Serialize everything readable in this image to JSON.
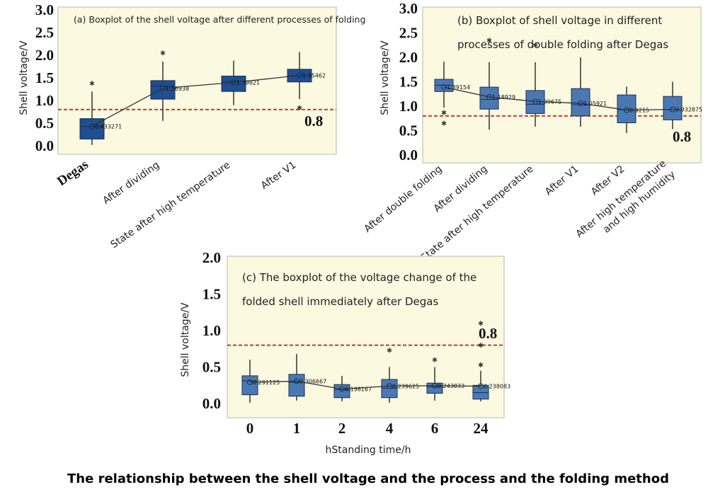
{
  "caption": "The relationship between the shell voltage and the process and the folding method",
  "colors": {
    "background": "#fbf9df",
    "box_dark": "#1f4e91",
    "box_light": "#4a78b2",
    "reference_line": "#c0393b"
  },
  "chart_data": [
    {
      "type": "boxplot",
      "title": "(a) Boxplot of the shell voltage after different processes of folding",
      "ylabel": "Shell voltage/V",
      "xlabel": "",
      "ylim": [
        0,
        3.0
      ],
      "yticks": [
        "0.0",
        "0.5",
        "1.0",
        "1.5",
        "2.0",
        "2.5",
        "3.0"
      ],
      "reference_line": {
        "value": 0.8,
        "label": "0.8"
      },
      "grid": false,
      "categories": [
        "Degas",
        "After dividing",
        "State after high temperature",
        "After V1"
      ],
      "boxes": [
        {
          "min": 0.02,
          "q1": 0.15,
          "median": 0.43,
          "q3": 0.6,
          "max": 1.2,
          "mean": 0.433271,
          "mean_label": "0.433271",
          "outliers": [
            1.38
          ]
        },
        {
          "min": 0.55,
          "q1": 1.03,
          "median": 1.32,
          "q3": 1.44,
          "max": 1.86,
          "mean": 1.26938,
          "mean_label": "1.26938",
          "outliers": [
            2.05
          ]
        },
        {
          "min": 0.9,
          "q1": 1.2,
          "median": 1.42,
          "q3": 1.54,
          "max": 1.88,
          "mean": 1.39821,
          "mean_label": "1.39821",
          "outliers": []
        },
        {
          "min": 1.03,
          "q1": 1.41,
          "median": 1.55,
          "q3": 1.69,
          "max": 2.07,
          "mean": 1.55462,
          "mean_label": "1.55462",
          "outliers": [
            0.84
          ]
        }
      ]
    },
    {
      "type": "boxplot",
      "title": [
        "(b) Boxplot of shell voltage in different",
        "processes of double folding after Degas"
      ],
      "ylabel": "Shell voltage/V",
      "xlabel": "",
      "ylim": [
        0,
        3.0
      ],
      "yticks": [
        "0.0",
        "0.5",
        "1.0",
        "1.5",
        "2.0",
        "2.5",
        "3.0"
      ],
      "reference_line": {
        "value": 0.8,
        "label": "0.8"
      },
      "grid": false,
      "categories": [
        "After double folding",
        "After dividing",
        "State after high temperature",
        "After V1",
        "After V2",
        [
          "After high temperature",
          "and high humidity"
        ]
      ],
      "boxes": [
        {
          "min": 0.97,
          "q1": 1.3,
          "median": 1.43,
          "q3": 1.55,
          "max": 1.91,
          "mean": 1.39154,
          "mean_label": "1.39154",
          "outliers": [
            0.87,
            0.65
          ]
        },
        {
          "min": 0.52,
          "q1": 0.94,
          "median": 1.14,
          "q3": 1.39,
          "max": 1.9,
          "mean": 1.18929,
          "mean_label": "1.18929",
          "outliers": [
            2.35
          ]
        },
        {
          "min": 0.58,
          "q1": 0.85,
          "median": 1.04,
          "q3": 1.32,
          "max": 1.9,
          "mean": 1.09675,
          "mean_label": "1.09675",
          "outliers": [
            2.25
          ]
        },
        {
          "min": 0.58,
          "q1": 0.8,
          "median": 1.03,
          "q3": 1.36,
          "max": 2.0,
          "mean": 1.05921,
          "mean_label": "1.05921",
          "outliers": []
        },
        {
          "min": 0.45,
          "q1": 0.66,
          "median": 0.93,
          "q3": 1.23,
          "max": 1.4,
          "mean": 0.9215,
          "mean_label": "0.9215",
          "outliers": []
        },
        {
          "min": 0.53,
          "q1": 0.72,
          "median": 0.93,
          "q3": 1.2,
          "max": 1.5,
          "mean": 0.932875,
          "mean_label": "0.932875",
          "outliers": []
        }
      ]
    },
    {
      "type": "boxplot",
      "title": [
        "(c) The boxplot of the voltage change of the",
        "folded shell immediately after Degas"
      ],
      "ylabel": "Shell voltage/V",
      "xlabel": "hStanding time/h",
      "ylim": [
        0,
        2.0
      ],
      "yticks": [
        "0.0",
        "0.5",
        "1.0",
        "1.5",
        "2.0"
      ],
      "reference_line": {
        "value": 0.8,
        "label": "0.8"
      },
      "grid": false,
      "categories": [
        "0",
        "1",
        "2",
        "4",
        "6",
        "24"
      ],
      "boxes": [
        {
          "min": 0.01,
          "q1": 0.12,
          "median": 0.31,
          "q3": 0.38,
          "max": 0.6,
          "mean": 0.291125,
          "mean_label": "0.291125",
          "outliers": []
        },
        {
          "min": 0.04,
          "q1": 0.1,
          "median": 0.29,
          "q3": 0.4,
          "max": 0.68,
          "mean": 0.306667,
          "mean_label": "0.306667",
          "outliers": []
        },
        {
          "min": 0.03,
          "q1": 0.08,
          "median": 0.19,
          "q3": 0.26,
          "max": 0.38,
          "mean": 0.198167,
          "mean_label": "0.198167",
          "outliers": []
        },
        {
          "min": 0.01,
          "q1": 0.08,
          "median": 0.21,
          "q3": 0.33,
          "max": 0.5,
          "mean": 0.239625,
          "mean_label": "0.239625",
          "outliers": [
            0.73
          ]
        },
        {
          "min": 0.04,
          "q1": 0.14,
          "median": 0.23,
          "q3": 0.28,
          "max": 0.5,
          "mean": 0.243833,
          "mean_label": "0.243833",
          "outliers": [
            0.6
          ]
        },
        {
          "min": 0.03,
          "q1": 0.06,
          "median": 0.15,
          "q3": 0.25,
          "max": 0.45,
          "mean": 0.238083,
          "mean_label": "0.238083",
          "outliers": [
            0.53,
            0.8,
            1.1
          ]
        }
      ]
    }
  ]
}
